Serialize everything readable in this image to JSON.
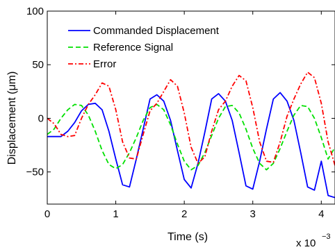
{
  "chart_data": {
    "type": "line",
    "title": "",
    "xlabel": "Time (s)",
    "ylabel": "Displacement (μm)",
    "x_multiplier_label": "x 10",
    "x_multiplier_exponent": "−3",
    "xlim": [
      0,
      4.2
    ],
    "ylim": [
      -80,
      100
    ],
    "x_ticks": [
      0,
      1,
      2,
      3,
      4
    ],
    "x_tick_labels": [
      "0",
      "1",
      "2",
      "3",
      "4"
    ],
    "y_ticks": [
      -50,
      0,
      50,
      100
    ],
    "y_tick_labels": [
      "−50",
      "0",
      "50",
      "100"
    ],
    "grid": false,
    "legend_position": "top-left",
    "series": [
      {
        "name": "Commanded Displacement",
        "color": "#0000ff",
        "dash": "solid",
        "x": [
          0,
          0.2,
          0.3,
          0.4,
          0.5,
          0.6,
          0.7,
          0.8,
          0.9,
          1.0,
          1.1,
          1.2,
          1.3,
          1.4,
          1.5,
          1.6,
          1.7,
          1.8,
          1.9,
          2.0,
          2.1,
          2.2,
          2.3,
          2.4,
          2.5,
          2.6,
          2.7,
          2.8,
          2.9,
          3.0,
          3.1,
          3.2,
          3.3,
          3.4,
          3.5,
          3.6,
          3.7,
          3.8,
          3.9,
          4.0,
          4.1,
          4.2
        ],
        "y": [
          -17,
          -17,
          -12,
          -4,
          7,
          13,
          14,
          8,
          -12,
          -38,
          -62,
          -64,
          -38,
          -10,
          18,
          22,
          16,
          -2,
          -30,
          -57,
          -65,
          -42,
          -13,
          18,
          23,
          16,
          -2,
          -32,
          -63,
          -66,
          -40,
          -10,
          18,
          24,
          16,
          -2,
          -32,
          -64,
          -67,
          -40,
          -72,
          -74
        ]
      },
      {
        "name": "Reference Signal",
        "color": "#00e000",
        "dash": "dashed",
        "x": [
          0,
          0.1,
          0.2,
          0.3,
          0.4,
          0.5,
          0.6,
          0.7,
          0.8,
          0.9,
          1.0,
          1.1,
          1.2,
          1.3,
          1.4,
          1.5,
          1.6,
          1.7,
          1.8,
          1.9,
          2.0,
          2.1,
          2.2,
          2.3,
          2.4,
          2.5,
          2.6,
          2.7,
          2.8,
          2.9,
          3.0,
          3.1,
          3.2,
          3.3,
          3.4,
          3.5,
          3.6,
          3.7,
          3.8,
          3.9,
          4.0,
          4.1,
          4.2
        ],
        "y": [
          -15,
          -10,
          0,
          8,
          13,
          12,
          3,
          -12,
          -30,
          -43,
          -47,
          -43,
          -32,
          -18,
          -2,
          10,
          13,
          8,
          -6,
          -24,
          -40,
          -48,
          -44,
          -32,
          -16,
          0,
          11,
          12,
          5,
          -10,
          -28,
          -42,
          -48,
          -42,
          -28,
          -12,
          3,
          12,
          11,
          0,
          -18,
          -38,
          -27
        ]
      },
      {
        "name": "Error",
        "color": "#ff0000",
        "dash": "dashdot",
        "x": [
          0,
          0.1,
          0.2,
          0.3,
          0.4,
          0.5,
          0.6,
          0.7,
          0.8,
          0.9,
          1.0,
          1.1,
          1.2,
          1.3,
          1.4,
          1.5,
          1.6,
          1.7,
          1.8,
          1.9,
          2.0,
          2.1,
          2.2,
          2.3,
          2.4,
          2.5,
          2.6,
          2.7,
          2.8,
          2.9,
          3.0,
          3.1,
          3.2,
          3.3,
          3.4,
          3.5,
          3.6,
          3.7,
          3.8,
          3.9,
          4.0,
          4.1,
          4.2
        ],
        "y": [
          0,
          -5,
          -15,
          -17,
          -16,
          0,
          13,
          22,
          33,
          30,
          8,
          -22,
          -37,
          -38,
          -15,
          7,
          14,
          25,
          36,
          30,
          5,
          -27,
          -42,
          -36,
          -12,
          8,
          16,
          30,
          40,
          35,
          10,
          -22,
          -40,
          -41,
          -22,
          2,
          18,
          32,
          43,
          38,
          14,
          -22,
          -44
        ]
      }
    ]
  }
}
